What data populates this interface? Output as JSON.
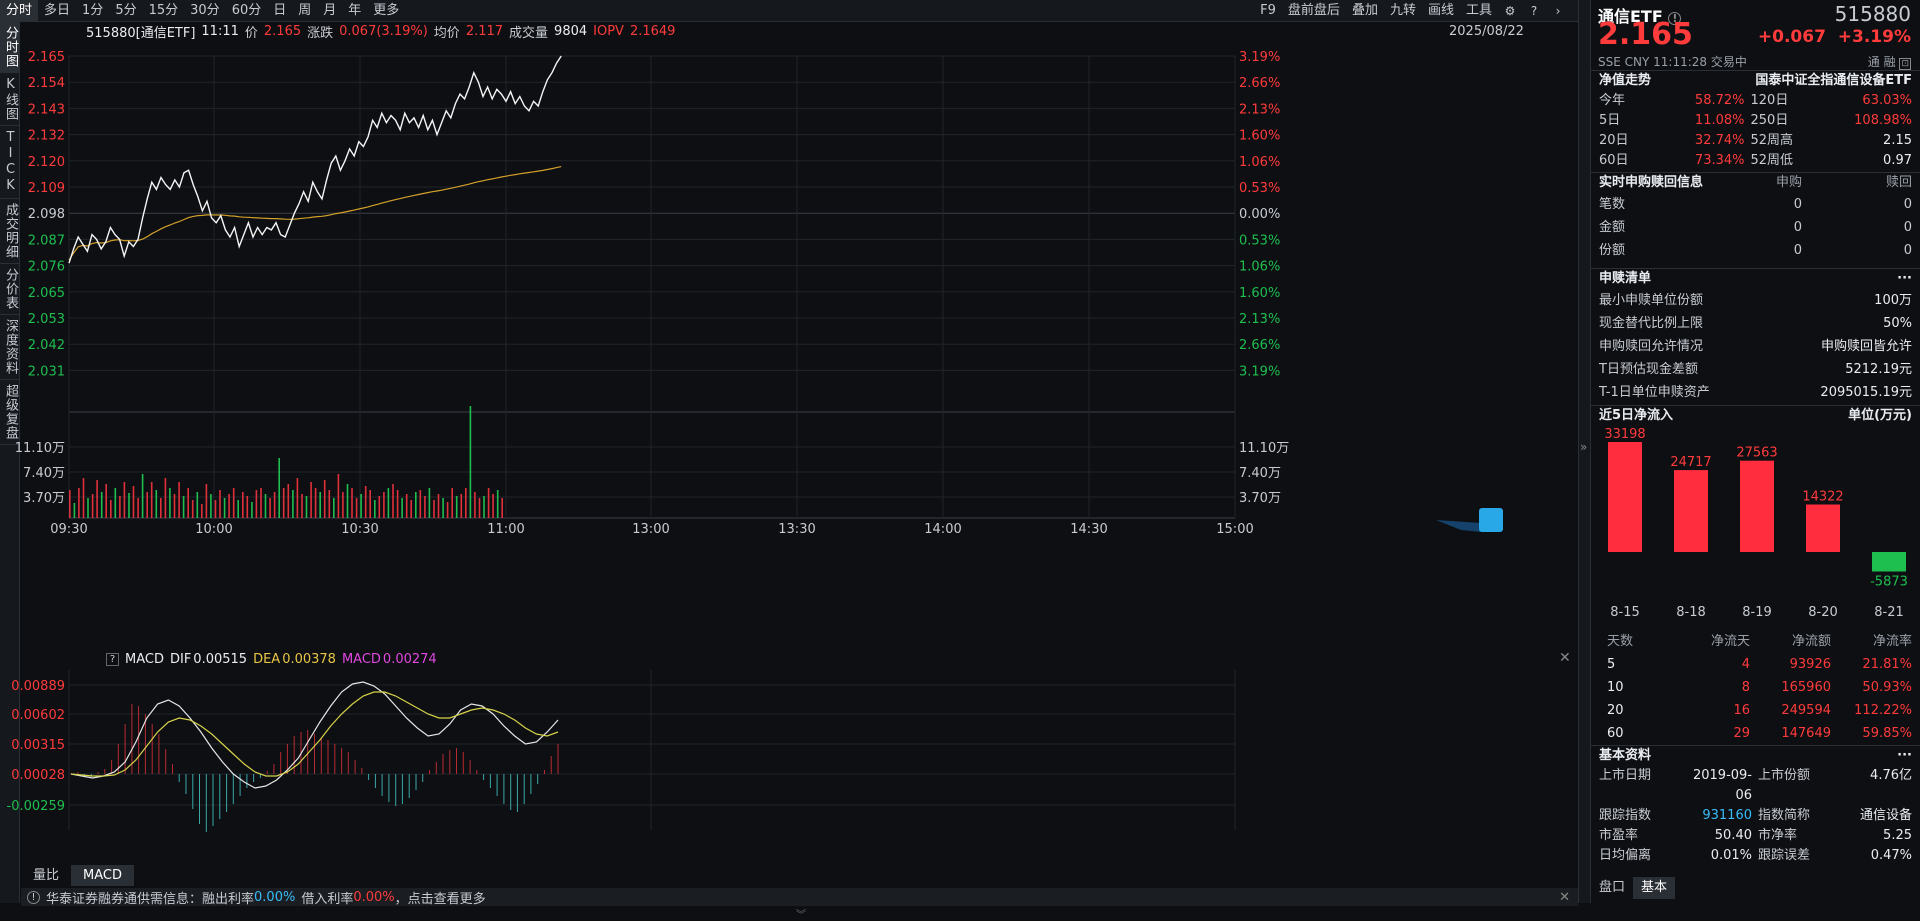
{
  "topbar": {
    "left_items": [
      "分时",
      "多日",
      "1分",
      "5分",
      "15分",
      "30分",
      "60分",
      "日",
      "周",
      "月",
      "年",
      "更多"
    ],
    "right_items": [
      "F9",
      "盘前盘后",
      "叠加",
      "九转",
      "画线",
      "工具"
    ],
    "icons": [
      "gear-icon",
      "help-icon",
      "chevron-right-icon"
    ]
  },
  "lefttabs": [
    "分时图",
    "K线图",
    "TICK",
    "成交明细",
    "分价表",
    "深度资料",
    "超级复盘"
  ],
  "info": {
    "code": "515880[通信ETF]",
    "time": "11:11",
    "price_label": "价",
    "price": "2.165",
    "change_label": "涨跌",
    "change": "0.067(3.19%)",
    "avg_label": "均价",
    "avg": "2.117",
    "vol_label": "成交量",
    "vol": "9804",
    "iopv_label": "IOPV",
    "iopv": "2.1649",
    "date": "2025/08/22"
  },
  "price_axis_left": [
    "2.165",
    "2.154",
    "2.143",
    "2.132",
    "2.120",
    "2.109",
    "2.098",
    "2.087",
    "2.076",
    "2.065",
    "2.053",
    "2.042",
    "2.031"
  ],
  "price_axis_right": [
    "3.19%",
    "2.66%",
    "2.13%",
    "1.60%",
    "1.06%",
    "0.53%",
    "0.00%",
    "0.53%",
    "1.06%",
    "1.60%",
    "2.13%",
    "2.66%",
    "3.19%"
  ],
  "vol_axis": [
    "11.10万",
    "7.40万",
    "3.70万"
  ],
  "time_axis": [
    "09:30",
    "10:00",
    "10:30",
    "11:00",
    "13:00",
    "13:30",
    "14:00",
    "14:30",
    "15:00"
  ],
  "macd": {
    "label": "MACD",
    "dif_label": "DIF",
    "dif": "0.00515",
    "dea_label": "DEA",
    "dea": "0.00378",
    "macd_label": "MACD",
    "macd": "0.00274",
    "axis": [
      "0.00889",
      "0.00602",
      "0.00315",
      "0.00028",
      "-0.00259"
    ]
  },
  "bottom_tabs": [
    "量比",
    "MACD"
  ],
  "notice": {
    "p1": "华泰证券融券通供需信息：融出利率",
    "r1": "0.00%",
    "p2": "借入利率",
    "r2": "0.00%",
    "p3": "，点击查看更多"
  },
  "right": {
    "name": "通信ETF",
    "code": "515880",
    "price": "2.165",
    "change": "+0.067",
    "change_pct": "+3.19%",
    "meta": "SSE  CNY  11:11:28  交易中",
    "meta2": "通  融",
    "trend_title": "净值走势",
    "trend_index": "国泰中证全指通信设备ETF",
    "trend": [
      {
        "l1": "今年",
        "v1": "58.72%",
        "l2": "120日",
        "v2": "63.03%"
      },
      {
        "l1": "5日",
        "v1": "11.08%",
        "l2": "250日",
        "v2": "108.98%"
      },
      {
        "l1": "20日",
        "v1": "32.74%",
        "l2": "52周高",
        "v2": "2.15"
      },
      {
        "l1": "60日",
        "v1": "73.34%",
        "l2": "52周低",
        "v2": "0.97"
      }
    ],
    "sub_title": "实时申购赎回信息",
    "sub_cols": [
      "申购",
      "赎回"
    ],
    "sub_rows": [
      {
        "l": "笔数",
        "a": "0",
        "b": "0"
      },
      {
        "l": "金额",
        "a": "0",
        "b": "0"
      },
      {
        "l": "份额",
        "a": "0",
        "b": "0"
      }
    ],
    "list_title": "申赎清单",
    "more": "···",
    "list": [
      {
        "l": "最小申赎单位份额",
        "v": "100万"
      },
      {
        "l": "现金替代比例上限",
        "v": "50%"
      },
      {
        "l": "申购赎回允许情况",
        "v": "申购赎回皆允许"
      },
      {
        "l": "T日预估现金差额",
        "v": "5212.19元"
      },
      {
        "l": "T-1日单位申赎资产",
        "v": "2095015.19元"
      }
    ],
    "flow_title": "近5日净流入",
    "flow_unit": "单位(万元)",
    "flow_rows_header": [
      "天数",
      "净流天",
      "净流额",
      "净流率"
    ],
    "flow_rows": [
      {
        "d": "5",
        "n": "4",
        "amt": "93926",
        "r": "21.81%"
      },
      {
        "d": "10",
        "n": "8",
        "amt": "165960",
        "r": "50.93%"
      },
      {
        "d": "20",
        "n": "16",
        "amt": "249594",
        "r": "112.22%"
      },
      {
        "d": "60",
        "n": "29",
        "amt": "147649",
        "r": "59.85%"
      }
    ],
    "basic_title": "基本资料",
    "basic": [
      {
        "l1": "上市日期",
        "v1": "2019-09-06",
        "l2": "上市份额",
        "v2": "4.76亿"
      },
      {
        "l1": "跟踪指数",
        "v1": "931160",
        "l2": "指数简称",
        "v2": "通信设备"
      },
      {
        "l1": "市盈率",
        "v1": "50.40",
        "l2": "市净率",
        "v2": "5.25"
      },
      {
        "l1": "日均偏离",
        "v1": "0.01%",
        "l2": "跟踪误差",
        "v2": "0.47%"
      }
    ],
    "tabs": [
      "盘口",
      "基本"
    ]
  },
  "chart_data": [
    {
      "type": "bar",
      "categories": [
        "8-15",
        "8-18",
        "8-19",
        "8-20",
        "8-21"
      ],
      "values": [
        33198,
        24717,
        27563,
        14322,
        -5873
      ],
      "title": "近5日净流入",
      "ylabel": "单位(万元)",
      "colors": {
        "positive": "#ff2d3d",
        "negative": "#1fbf4f"
      }
    }
  ]
}
